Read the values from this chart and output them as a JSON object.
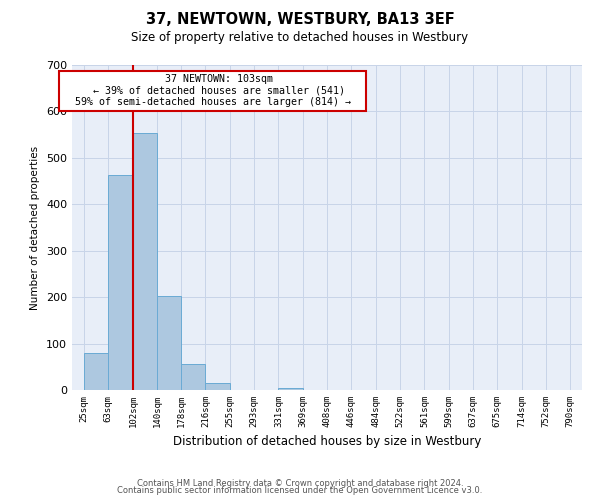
{
  "title": "37, NEWTOWN, WESTBURY, BA13 3EF",
  "subtitle": "Size of property relative to detached houses in Westbury",
  "xlabel": "Distribution of detached houses by size in Westbury",
  "ylabel": "Number of detached properties",
  "bar_values": [
    80,
    463,
    553,
    202,
    57,
    15,
    0,
    0,
    5,
    0,
    0,
    0,
    0,
    0,
    0,
    0,
    0,
    0,
    0,
    0
  ],
  "bin_edges": [
    25,
    63,
    102,
    140,
    178,
    216,
    255,
    293,
    331,
    369,
    408,
    446,
    484,
    522,
    561,
    599,
    637,
    675,
    714,
    752,
    790
  ],
  "tick_labels": [
    "25sqm",
    "63sqm",
    "102sqm",
    "140sqm",
    "178sqm",
    "216sqm",
    "255sqm",
    "293sqm",
    "331sqm",
    "369sqm",
    "408sqm",
    "446sqm",
    "484sqm",
    "522sqm",
    "561sqm",
    "599sqm",
    "637sqm",
    "675sqm",
    "714sqm",
    "752sqm",
    "790sqm"
  ],
  "bar_color": "#adc8e0",
  "bar_edge_color": "#6aaad4",
  "vline_x": 102,
  "vline_color": "#cc0000",
  "ylim": [
    0,
    700
  ],
  "yticks": [
    0,
    100,
    200,
    300,
    400,
    500,
    600,
    700
  ],
  "annotation_title": "37 NEWTOWN: 103sqm",
  "annotation_line1": "← 39% of detached houses are smaller (541)",
  "annotation_line2": "59% of semi-detached houses are larger (814) →",
  "annotation_box_color": "#cc0000",
  "grid_color": "#c8d4e8",
  "bg_color": "#e8eef8",
  "footer1": "Contains HM Land Registry data © Crown copyright and database right 2024.",
  "footer2": "Contains public sector information licensed under the Open Government Licence v3.0."
}
